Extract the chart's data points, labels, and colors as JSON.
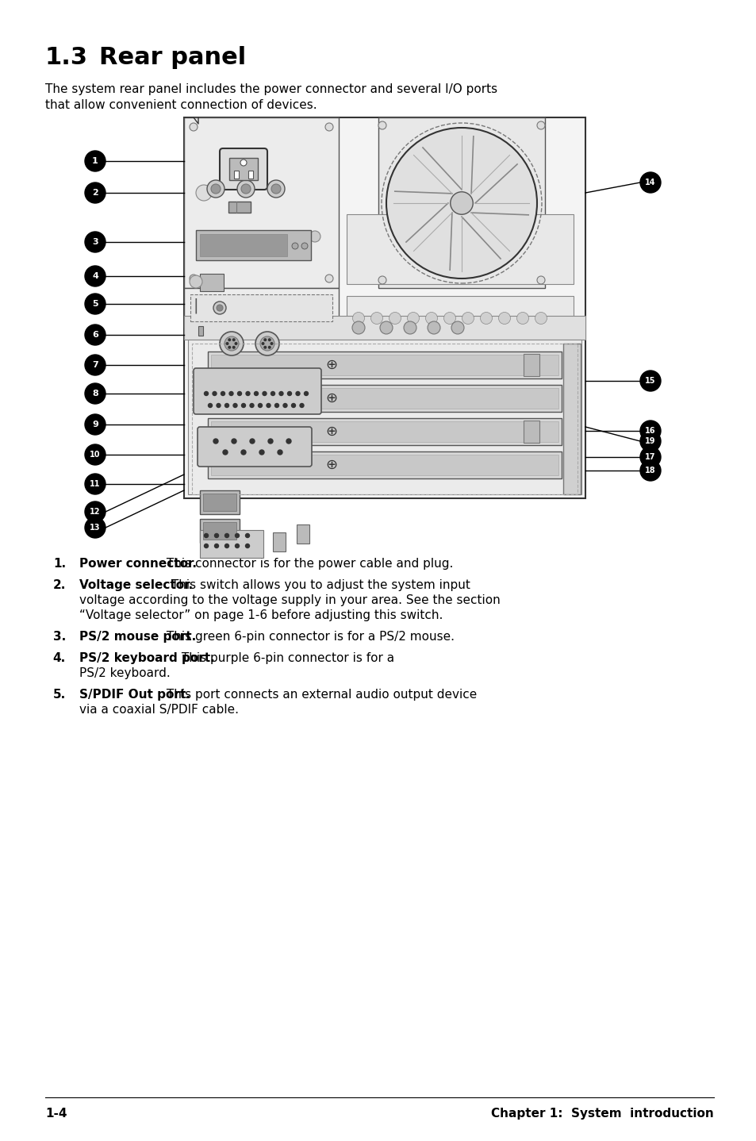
{
  "title_num": "1.3",
  "title_text": "Rear panel",
  "subtitle": "The system rear panel includes the power connector and several I/O ports\nthat allow convenient connection of devices.",
  "footer_left": "1-4",
  "footer_right": "Chapter 1:  System  introduction",
  "list_items": [
    {
      "num": "1.",
      "bold": "Power connector.",
      "rest": " This connector is for the power cable and plug.",
      "extra_lines": []
    },
    {
      "num": "2.",
      "bold": "Voltage selector.",
      "rest": " This switch allows you to adjust the system input",
      "extra_lines": [
        "voltage according to the voltage supply in your area. See the section",
        "“Voltage selector” on page 1-6 before adjusting this switch."
      ]
    },
    {
      "num": "3.",
      "bold": "PS/2 mouse port.",
      "rest": " This green 6-pin connector is for a PS/2 mouse.",
      "extra_lines": []
    },
    {
      "num": "4.",
      "bold": "PS/2 keyboard port.",
      "rest": " This purple 6-pin connector is for a",
      "extra_lines": [
        "PS/2 keyboard."
      ]
    },
    {
      "num": "5.",
      "bold": "S/PDIF Out port.",
      "rest": " This port connects an external audio output device",
      "extra_lines": [
        "via a coaxial S/PDIF cable."
      ]
    }
  ],
  "bg_color": "#ffffff",
  "text_color": "#000000",
  "title_fontsize": 22,
  "subtitle_fontsize": 11,
  "body_fontsize": 11,
  "num_fontsize": 11
}
